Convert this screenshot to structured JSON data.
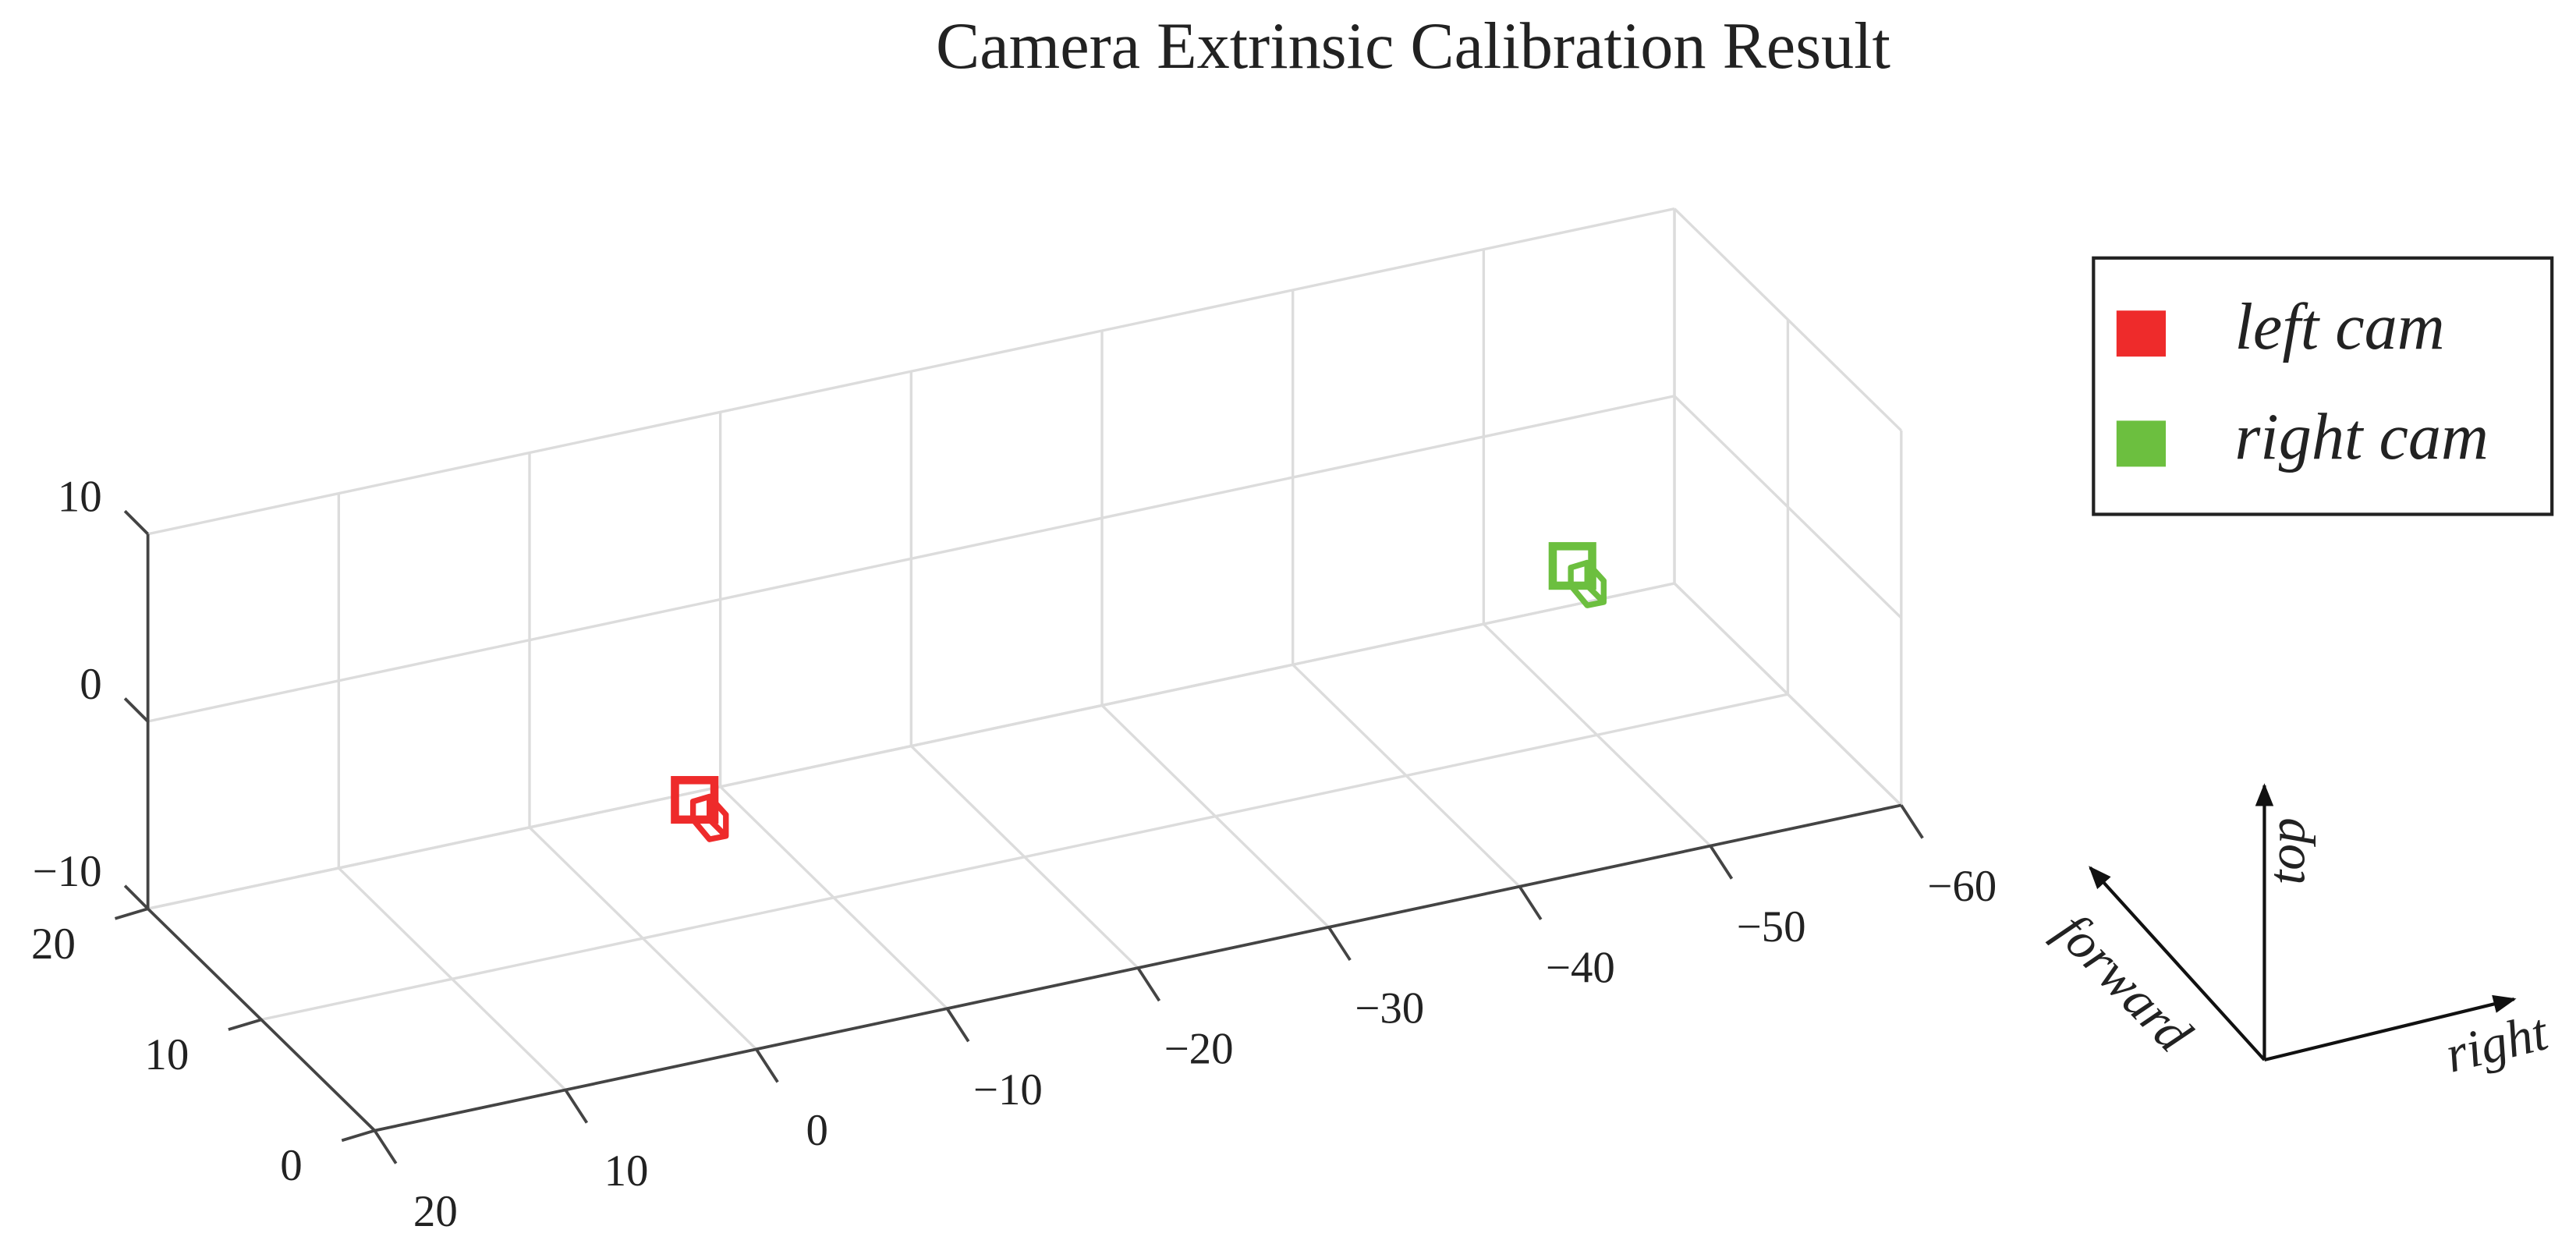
{
  "chart_data": {
    "type": "scatter3d",
    "title": "Camera Extrinsic Calibration Result",
    "xlim": [
      20,
      -60
    ],
    "xticks": [
      20,
      10,
      0,
      {
        "value": -10,
        "label": "−10"
      },
      {
        "value": -20,
        "label": "−20"
      },
      {
        "value": -30,
        "label": "−30"
      },
      {
        "value": -40,
        "label": "−40"
      },
      {
        "value": -50,
        "label": "−50"
      },
      {
        "value": -60,
        "label": "−60"
      }
    ],
    "ylim": [
      0,
      20
    ],
    "yticks": [
      0,
      10,
      20
    ],
    "zlim": [
      -10,
      10
    ],
    "zticks": [
      {
        "value": -10,
        "label": "−10"
      },
      0,
      10
    ],
    "grid": true,
    "legend": "right",
    "series": [
      {
        "name": "left cam",
        "color": "#ee2b2b",
        "x": [
          0
        ],
        "y": [
          5
        ],
        "z": [
          0
        ]
      },
      {
        "name": "right cam",
        "color": "#6cbf3f",
        "x": [
          -46
        ],
        "y": [
          5
        ],
        "z": [
          2.5
        ]
      }
    ],
    "direction_labels": [
      "forward",
      "top",
      "right"
    ]
  }
}
